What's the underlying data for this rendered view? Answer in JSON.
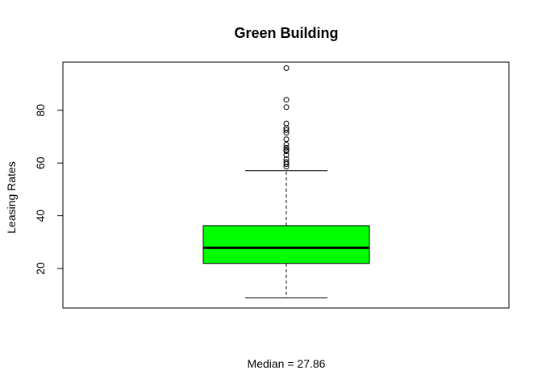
{
  "chart_data": {
    "type": "box",
    "title": "Green Building",
    "xlabel": "Median = 27.86",
    "ylabel": "Leasing Rates",
    "ylim": [
      5.03,
      98.28
    ],
    "yticks": [
      20,
      40,
      60,
      80
    ],
    "grid": false,
    "colors": {
      "box_fill": "#00ff00",
      "line": "#000000",
      "background": "#ffffff"
    },
    "box": {
      "whisker_low": 8.87,
      "q1": 21.93,
      "median": 27.86,
      "q3": 36.24,
      "whisker_high": 57.08
    },
    "outliers": [
      58.6,
      59.6,
      60.4,
      61.5,
      63.0,
      64.5,
      65.0,
      65.8,
      67.0,
      69.0,
      71.5,
      72.5,
      73.3,
      75.0,
      81.2,
      84.0,
      96.0
    ]
  }
}
